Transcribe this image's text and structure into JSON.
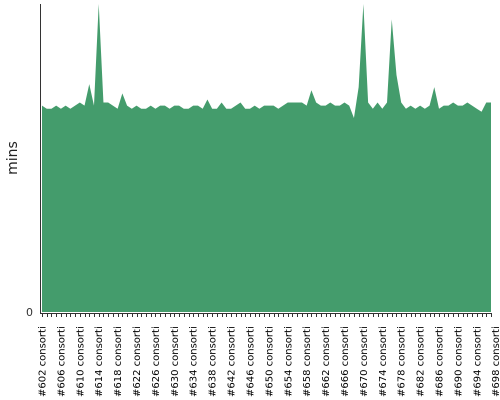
{
  "chart_data": {
    "type": "area",
    "title": "",
    "xlabel": "",
    "ylabel": "mins",
    "y_tick_labels": [
      "0"
    ],
    "ylim": [
      0,
      100
    ],
    "grid": false,
    "legend": "none",
    "area_color": "#449C6C",
    "series": [
      {
        "values": [
          67,
          66,
          66,
          67,
          66,
          67,
          66,
          67,
          68,
          67,
          74,
          67,
          100,
          68,
          68,
          67,
          66,
          71,
          67,
          66,
          67,
          66,
          66,
          67,
          66,
          67,
          67,
          66,
          67,
          67,
          66,
          66,
          67,
          67,
          66,
          69,
          66,
          66,
          68,
          66,
          66,
          67,
          68,
          66,
          66,
          67,
          66,
          67,
          67,
          67,
          66,
          67,
          68,
          68,
          68,
          68,
          67,
          72,
          68,
          67,
          67,
          68,
          67,
          67,
          68,
          67,
          63,
          73,
          100,
          68,
          66,
          68,
          66,
          68,
          95,
          77,
          68,
          66,
          67,
          66,
          67,
          66,
          67,
          73,
          66,
          67,
          67,
          68,
          67,
          67,
          68,
          67,
          66,
          65,
          68,
          68
        ]
      }
    ],
    "x_tick_labels": [
      "#602 consorti",
      "#606 consorti",
      "#610 consorti",
      "#614 consorti",
      "#618 consorti",
      "#622 consorti",
      "#626 consorti",
      "#630 consorti",
      "#634 consorti",
      "#638 consorti",
      "#642 consorti",
      "#646 consorti",
      "#650 consorti",
      "#654 consorti",
      "#658 consorti",
      "#662 consorti",
      "#666 consorti",
      "#670 consorti",
      "#674 consorti",
      "#678 consorti",
      "#682 consorti",
      "#686 consorti",
      "#690 consorti",
      "#694 consorti",
      "#698 consorti"
    ]
  }
}
